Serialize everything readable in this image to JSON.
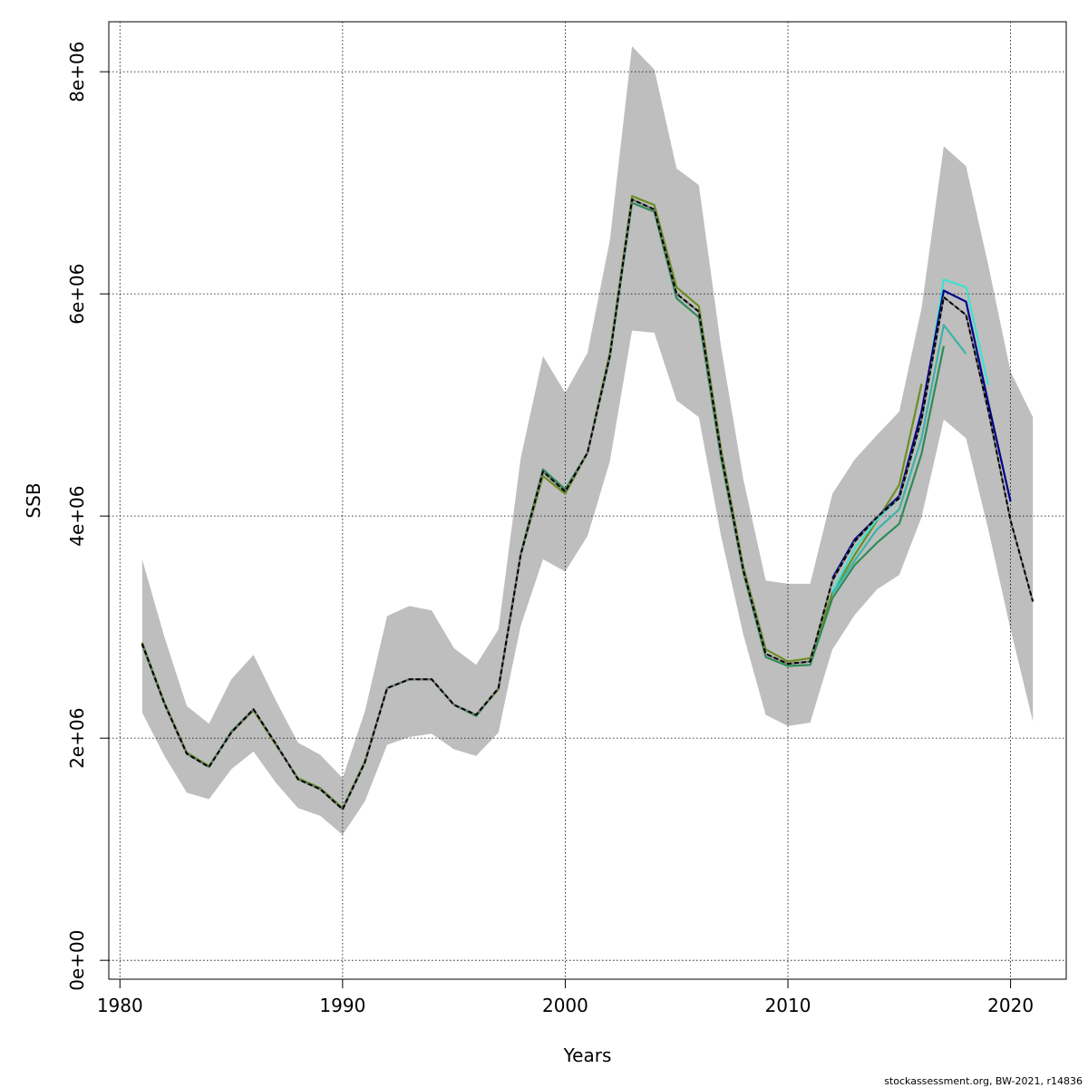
{
  "chart_data": {
    "type": "line",
    "xlabel": "Years",
    "ylabel": "SSB",
    "xlim": [
      1979.5,
      2022.5
    ],
    "ylim": [
      -170000,
      8450000
    ],
    "x_ticks": [
      1980,
      1990,
      2000,
      2010,
      2020
    ],
    "x_tick_labels": [
      "1980",
      "1990",
      "2000",
      "2010",
      "2020"
    ],
    "y_ticks": [
      0,
      2000000,
      4000000,
      6000000,
      8000000
    ],
    "y_tick_labels": [
      "0e+00",
      "2e+06",
      "4e+06",
      "6e+06",
      "8e+06"
    ],
    "grid": true,
    "footer": "stockassessment.org, BW-2021, r14836",
    "band": {
      "color": "#bebebe",
      "x": [
        1981,
        1982,
        1983,
        1984,
        1985,
        1986,
        1987,
        1988,
        1989,
        1990,
        1991,
        1992,
        1993,
        1994,
        1995,
        1996,
        1997,
        1998,
        1999,
        2000,
        2001,
        2002,
        2003,
        2004,
        2005,
        2006,
        2007,
        2008,
        2009,
        2010,
        2011,
        2012,
        2013,
        2014,
        2015,
        2016,
        2017,
        2018,
        2019,
        2020,
        2021
      ],
      "upper": [
        3610000,
        2910000,
        2290000,
        2130000,
        2530000,
        2750000,
        2340000,
        1960000,
        1850000,
        1640000,
        2240000,
        3100000,
        3190000,
        3150000,
        2810000,
        2660000,
        2980000,
        4520000,
        5440000,
        5110000,
        5470000,
        6480000,
        8230000,
        8020000,
        7130000,
        6980000,
        5520000,
        4330000,
        3420000,
        3390000,
        3390000,
        4200000,
        4510000,
        4730000,
        4940000,
        5870000,
        7330000,
        7150000,
        6260000,
        5300000,
        4890000
      ],
      "lower": [
        2230000,
        1840000,
        1510000,
        1450000,
        1720000,
        1880000,
        1600000,
        1370000,
        1300000,
        1130000,
        1430000,
        1940000,
        2010000,
        2040000,
        1900000,
        1840000,
        2050000,
        3010000,
        3610000,
        3500000,
        3820000,
        4490000,
        5670000,
        5650000,
        5040000,
        4890000,
        3820000,
        2930000,
        2210000,
        2110000,
        2140000,
        2800000,
        3110000,
        3340000,
        3470000,
        3990000,
        4870000,
        4700000,
        3880000,
        2980000,
        2150000
      ]
    },
    "series": [
      {
        "color": "#6b8e23",
        "dash": false,
        "x": [
          1981,
          1982,
          1983,
          1984,
          1985,
          1986,
          1987,
          1988,
          1989,
          1990,
          1991,
          1992,
          1993,
          1994,
          1995,
          1996,
          1997,
          1998,
          1999,
          2000,
          2001,
          2002,
          2003,
          2004,
          2005,
          2006,
          2007,
          2008,
          2009,
          2010,
          2011,
          2012,
          2013,
          2014,
          2015,
          2016
        ],
        "values": [
          2860000,
          2320000,
          1870000,
          1750000,
          2050000,
          2250000,
          1940000,
          1640000,
          1550000,
          1370000,
          1790000,
          2450000,
          2530000,
          2530000,
          2300000,
          2210000,
          2440000,
          3650000,
          4360000,
          4200000,
          4570000,
          5470000,
          6880000,
          6800000,
          6060000,
          5890000,
          4600000,
          3540000,
          2800000,
          2690000,
          2720000,
          3310000,
          3650000,
          3960000,
          4280000,
          5190000
        ]
      },
      {
        "color": "#40e0d0",
        "dash": false,
        "x": [
          2012,
          2013,
          2014,
          2015,
          2016,
          2017,
          2018,
          2019
        ],
        "values": [
          3320000,
          3710000,
          3970000,
          4160000,
          4870000,
          6130000,
          6060000,
          5180000
        ]
      },
      {
        "color": "#3cb3a8",
        "dash": false,
        "x": [
          2012,
          2013,
          2014,
          2015,
          2016,
          2017,
          2018
        ],
        "values": [
          3300000,
          3600000,
          3880000,
          4060000,
          4700000,
          5720000,
          5460000
        ]
      },
      {
        "color": "#00008b",
        "dash": false,
        "x": [
          2012,
          2013,
          2014,
          2015,
          2016,
          2017,
          2018,
          2019,
          2020
        ],
        "values": [
          3440000,
          3790000,
          3990000,
          4180000,
          4940000,
          6030000,
          5930000,
          5020000,
          4130000
        ]
      },
      {
        "color": "#2e8b57",
        "dash": false,
        "x": [
          1981,
          1982,
          1983,
          1984,
          1985,
          1986,
          1987,
          1988,
          1989,
          1990,
          1991,
          1992,
          1993,
          1994,
          1995,
          1996,
          1997,
          1998,
          1999,
          2000,
          2001,
          2002,
          2003,
          2004,
          2005,
          2006,
          2007,
          2008,
          2009,
          2010,
          2011,
          2012,
          2013,
          2014,
          2015,
          2016,
          2017
        ],
        "values": [
          2840000,
          2310000,
          1860000,
          1740000,
          2060000,
          2260000,
          1950000,
          1630000,
          1540000,
          1360000,
          1780000,
          2450000,
          2530000,
          2530000,
          2300000,
          2200000,
          2450000,
          3660000,
          4420000,
          4240000,
          4570000,
          5430000,
          6820000,
          6740000,
          5960000,
          5790000,
          4520000,
          3490000,
          2730000,
          2650000,
          2660000,
          3260000,
          3560000,
          3760000,
          3930000,
          4560000,
          5530000
        ]
      },
      {
        "color": "#000000",
        "dash": true,
        "x": [
          1981,
          1982,
          1983,
          1984,
          1985,
          1986,
          1987,
          1988,
          1989,
          1990,
          1991,
          1992,
          1993,
          1994,
          1995,
          1996,
          1997,
          1998,
          1999,
          2000,
          2001,
          2002,
          2003,
          2004,
          2005,
          2006,
          2007,
          2008,
          2009,
          2010,
          2011,
          2012,
          2013,
          2014,
          2015,
          2016,
          2017,
          2018,
          2019,
          2020,
          2021
        ],
        "values": [
          2850000,
          2310000,
          1860000,
          1740000,
          2050000,
          2260000,
          1950000,
          1630000,
          1540000,
          1360000,
          1780000,
          2450000,
          2530000,
          2530000,
          2300000,
          2210000,
          2450000,
          3650000,
          4400000,
          4220000,
          4570000,
          5440000,
          6850000,
          6760000,
          6000000,
          5840000,
          4560000,
          3510000,
          2760000,
          2670000,
          2690000,
          3420000,
          3770000,
          3990000,
          4160000,
          4870000,
          5970000,
          5810000,
          4950000,
          3960000,
          3230000
        ]
      }
    ]
  }
}
